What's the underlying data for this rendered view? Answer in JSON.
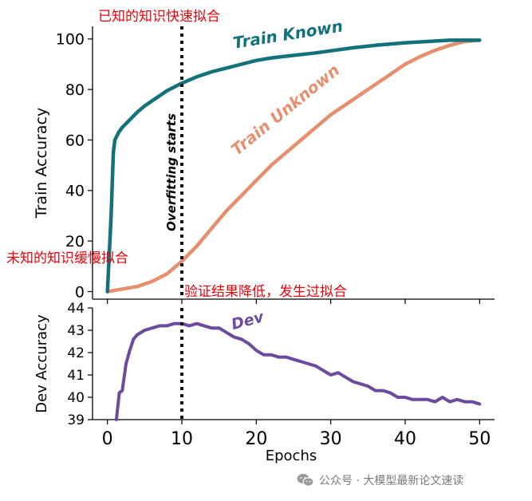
{
  "annotations": {
    "known_fit": "已知的知识快速拟合",
    "unknown_fit": "未知的知识缓慢拟合",
    "overfit": "验证结果降低，发生过拟合"
  },
  "watermark": {
    "text": "公众号 · 大模型最新论文速读",
    "icon": "wechat-icon"
  },
  "colors": {
    "train_known": "#11727a",
    "train_unknown": "#e58f6e",
    "dev": "#6c4b9e",
    "annotation": "#e8000b",
    "overfit_line": "#111111"
  },
  "chart_data": [
    {
      "type": "line",
      "ylabel": "Train Accuracy",
      "xlim": [
        -2,
        52
      ],
      "ylim": [
        -3,
        105
      ],
      "xticks": [
        0,
        10,
        20,
        30,
        40,
        50
      ],
      "yticks": [
        0,
        20,
        40,
        60,
        80,
        100
      ],
      "grid": false,
      "vline": {
        "x": 10,
        "label": "Overfitting starts"
      },
      "series": [
        {
          "name": "Train Known",
          "x": [
            0,
            0.5,
            0.8,
            1,
            1.5,
            2,
            3,
            4,
            5,
            6,
            7,
            8,
            9,
            10,
            12,
            14,
            16,
            18,
            20,
            22,
            25,
            28,
            30,
            33,
            36,
            40,
            43,
            46,
            50
          ],
          "y": [
            0,
            30,
            55,
            60,
            63,
            65,
            68,
            71,
            73.5,
            75.5,
            77.5,
            79.5,
            81,
            82.5,
            85,
            87,
            88.5,
            90,
            91.5,
            92.5,
            93.5,
            94.5,
            95.3,
            96.5,
            97.5,
            98.5,
            99,
            99.5,
            99.5
          ]
        },
        {
          "name": "Train Unknown",
          "x": [
            0,
            2,
            4,
            6,
            8,
            10,
            12,
            14,
            16,
            18,
            20,
            22,
            24,
            26,
            28,
            30,
            32,
            34,
            36,
            38,
            40,
            42,
            44,
            46,
            48,
            50
          ],
          "y": [
            0,
            1,
            2,
            4,
            7,
            12,
            18,
            25,
            32,
            38,
            44,
            50,
            55,
            60,
            65,
            70,
            74,
            78,
            82,
            86,
            90,
            93,
            95.5,
            97.5,
            99,
            99.5
          ]
        }
      ]
    },
    {
      "type": "line",
      "xlabel": "Epochs",
      "ylabel": "Dev Accuracy",
      "xlim": [
        -2,
        52
      ],
      "ylim": [
        39,
        44
      ],
      "xticks": [
        0,
        10,
        20,
        30,
        40,
        50
      ],
      "yticks": [
        39,
        40,
        41,
        42,
        43,
        44
      ],
      "grid": false,
      "vline": {
        "x": 10
      },
      "series": [
        {
          "name": "Dev",
          "x": [
            1.2,
            1.6,
            2,
            2.5,
            3,
            3.5,
            4,
            5,
            6,
            7,
            8,
            9,
            10,
            11,
            12,
            13,
            14,
            15,
            16,
            17,
            18,
            19,
            20,
            21,
            22,
            23,
            24,
            25,
            26,
            27,
            28,
            29,
            30,
            31,
            32,
            33,
            34,
            35,
            36,
            37,
            38,
            39,
            40,
            41,
            42,
            43,
            44,
            45,
            46,
            47,
            48,
            49,
            50
          ],
          "y": [
            39,
            40.2,
            40.3,
            41.5,
            42.1,
            42.6,
            42.8,
            43.0,
            43.1,
            43.2,
            43.2,
            43.3,
            43.3,
            43.2,
            43.3,
            43.2,
            43.1,
            43.1,
            42.9,
            42.7,
            42.6,
            42.4,
            42.1,
            41.9,
            41.9,
            41.8,
            41.8,
            41.7,
            41.6,
            41.5,
            41.4,
            41.2,
            41.0,
            41.1,
            40.9,
            40.7,
            40.6,
            40.5,
            40.3,
            40.3,
            40.2,
            40.0,
            40.0,
            39.9,
            39.9,
            39.9,
            39.8,
            40.0,
            39.8,
            39.9,
            39.8,
            39.8,
            39.7
          ]
        }
      ]
    }
  ]
}
